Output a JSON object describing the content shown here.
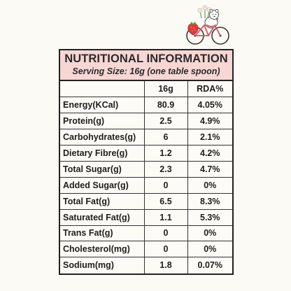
{
  "panel": {
    "title": "NUTRITIONAL INFORMATION",
    "subtitle": "Serving Size: 16g (one table spoon)"
  },
  "table": {
    "headers": [
      "",
      "16g",
      "RDA%"
    ],
    "rows": [
      {
        "name": "Energy(KCal)",
        "value": "80.9",
        "rda": "4.05%"
      },
      {
        "name": "Protein(g)",
        "value": "2.5",
        "rda": "4.9%"
      },
      {
        "name": "Carbohydrates(g)",
        "value": "6",
        "rda": "2.1%"
      },
      {
        "name": "Dietary Fibre(g)",
        "value": "1.2",
        "rda": "4.2%"
      },
      {
        "name": "Total Sugar(g)",
        "value": "2.3",
        "rda": "4.7%"
      },
      {
        "name": "Added Sugar(g)",
        "value": "0",
        "rda": "0%"
      },
      {
        "name": "Total Fat(g)",
        "value": "6.5",
        "rda": "8.3%"
      },
      {
        "name": "Saturated Fat(g)",
        "value": "1.1",
        "rda": "5.3%"
      },
      {
        "name": "Trans Fat(g)",
        "value": "0",
        "rda": "0%"
      },
      {
        "name": "Cholesterol(mg)",
        "value": "0",
        "rda": "0%"
      },
      {
        "name": "Sodium(mg)",
        "value": "1.8",
        "rda": "0.07%"
      }
    ]
  },
  "colors": {
    "header_bg": "#f7d6d4",
    "border": "#222222",
    "background": "#fcfaf5"
  },
  "icons": {
    "mascot": "bear-on-bicycle-with-strawberry-icon"
  }
}
